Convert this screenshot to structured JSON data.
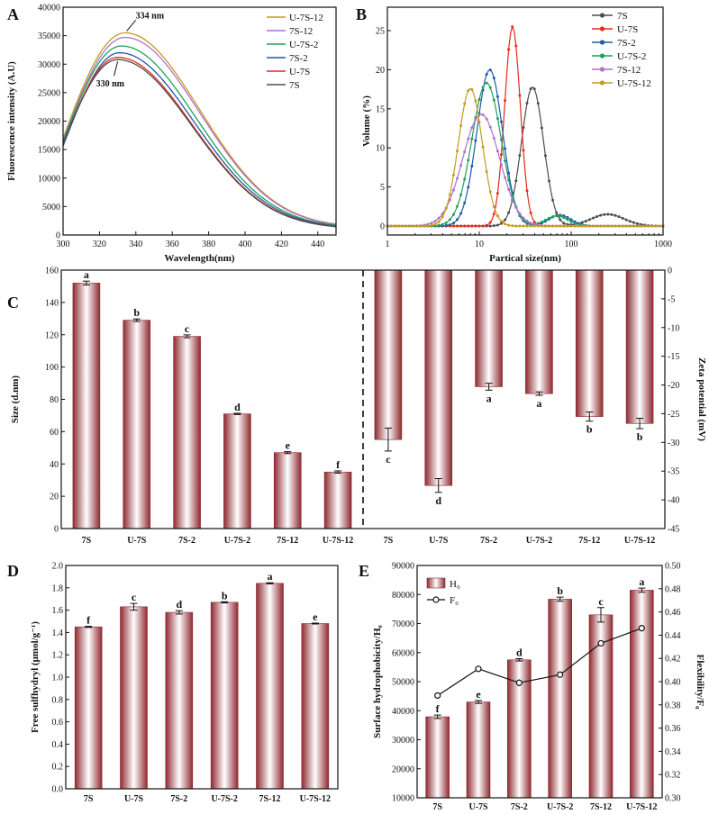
{
  "colors": {
    "7S": "#4d4d4d",
    "U-7S": "#e8291c",
    "7S-2": "#1d5aa8",
    "U-7S-2": "#1fa05a",
    "7S-12": "#b06fd0",
    "U-7S-12": "#c79a1c",
    "bar_dark": "#8e2a30",
    "bar_light": "#ffffff"
  },
  "chart_data": [
    {
      "id": "A",
      "type": "line",
      "panel_label": "A",
      "xlabel": "Wavelength(nm)",
      "ylabel": "Fluorescence intensity (A.U)",
      "xlim": [
        300,
        450
      ],
      "ylim": [
        0,
        40000
      ],
      "xticks": [
        300,
        320,
        340,
        360,
        380,
        400,
        420,
        440
      ],
      "yticks": [
        0,
        5000,
        10000,
        15000,
        20000,
        25000,
        30000,
        35000,
        40000
      ],
      "legend_order": [
        "U-7S-12",
        "7S-12",
        "U-7S-2",
        "7S-2",
        "U-7S",
        "7S"
      ],
      "series": [
        {
          "name": "U-7S-12",
          "peak_x": 334,
          "peak_y": 35500,
          "start_y": 17000,
          "end_y": 1300
        },
        {
          "name": "7S-12",
          "peak_x": 334,
          "peak_y": 34700,
          "start_y": 16600,
          "end_y": 1250
        },
        {
          "name": "U-7S-2",
          "peak_x": 332,
          "peak_y": 33200,
          "start_y": 16400,
          "end_y": 1200
        },
        {
          "name": "7S-2",
          "peak_x": 331,
          "peak_y": 32000,
          "start_y": 15600,
          "end_y": 1150
        },
        {
          "name": "U-7S",
          "peak_x": 330,
          "peak_y": 31200,
          "start_y": 16100,
          "end_y": 1100
        },
        {
          "name": "7S",
          "peak_x": 330,
          "peak_y": 30800,
          "start_y": 16200,
          "end_y": 1050
        }
      ],
      "annotations": [
        {
          "text": "334 nm",
          "x": 334,
          "y": 35500
        },
        {
          "text": "330 nm",
          "x": 330,
          "y": 30800
        }
      ]
    },
    {
      "id": "B",
      "type": "line",
      "panel_label": "B",
      "xlabel": "Partical size(nm)",
      "ylabel": "Volume (%)",
      "xscale": "log",
      "xlim": [
        1,
        1000
      ],
      "ylim": [
        0,
        28
      ],
      "xticks": [
        1,
        10,
        100,
        1000
      ],
      "yticks": [
        0,
        5,
        10,
        15,
        20,
        25
      ],
      "legend_order": [
        "7S",
        "U-7S",
        "7S-2",
        "U-7S-2",
        "7S-12",
        "U-7S-12"
      ],
      "series": [
        {
          "name": "7S",
          "peaks": [
            {
              "center": 38,
              "height": 17.8,
              "width": 0.12
            },
            {
              "center": 250,
              "height": 1.5,
              "width": 0.18
            }
          ]
        },
        {
          "name": "U-7S",
          "peaks": [
            {
              "center": 23,
              "height": 25.5,
              "width": 0.085
            }
          ]
        },
        {
          "name": "7S-2",
          "peaks": [
            {
              "center": 13,
              "height": 20,
              "width": 0.14
            },
            {
              "center": 75,
              "height": 1.4,
              "width": 0.12
            }
          ]
        },
        {
          "name": "U-7S-2",
          "peaks": [
            {
              "center": 12,
              "height": 18.3,
              "width": 0.16
            },
            {
              "center": 70,
              "height": 1.3,
              "width": 0.12
            }
          ]
        },
        {
          "name": "7S-12",
          "peaks": [
            {
              "center": 10.5,
              "height": 14.3,
              "width": 0.2
            }
          ]
        },
        {
          "name": "U-7S-12",
          "peaks": [
            {
              "center": 8,
              "height": 17.6,
              "width": 0.13
            }
          ]
        }
      ]
    },
    {
      "id": "C-size",
      "type": "bar",
      "panel_label": "C",
      "ylabel": "Size (d.nm)",
      "ylim": [
        0,
        160
      ],
      "yticks": [
        0,
        20,
        40,
        60,
        80,
        100,
        120,
        140,
        160
      ],
      "categories": [
        "7S",
        "U-7S",
        "7S-2",
        "U-7S-2",
        "7S-12",
        "U-7S-12"
      ],
      "values": [
        152,
        129,
        119,
        71,
        47,
        35
      ],
      "errors": [
        1.2,
        0.8,
        0.9,
        0.4,
        0.6,
        0.7
      ],
      "letters": [
        "a",
        "b",
        "c",
        "d",
        "e",
        "f"
      ]
    },
    {
      "id": "C-zeta",
      "type": "bar",
      "ylabel": "Zeta potential (mV)",
      "ylim": [
        -45,
        0
      ],
      "yticks": [
        0,
        -5,
        -10,
        -15,
        -20,
        -25,
        -30,
        -35,
        -40,
        -45
      ],
      "categories": [
        "7S",
        "U-7S",
        "7S-2",
        "U-7S-2",
        "7S-12",
        "U-7S-12"
      ],
      "values": [
        -29.5,
        -37.5,
        -20.3,
        -21.5,
        -25.5,
        -26.7
      ],
      "errors": [
        2.0,
        1.2,
        0.6,
        0.3,
        0.8,
        0.9
      ],
      "letters": [
        "c",
        "d",
        "a",
        "a",
        "b",
        "b"
      ]
    },
    {
      "id": "D",
      "type": "bar",
      "panel_label": "D",
      "ylabel": "Free sulfhydryl (μmol/g⁻¹)",
      "ylim": [
        0,
        2.0
      ],
      "yticks": [
        0.0,
        0.2,
        0.4,
        0.6,
        0.8,
        1.0,
        1.2,
        1.4,
        1.6,
        1.8,
        2.0
      ],
      "categories": [
        "7S",
        "U-7S",
        "7S-2",
        "U-7S-2",
        "7S-12",
        "U-7S-12"
      ],
      "values": [
        1.45,
        1.63,
        1.58,
        1.67,
        1.84,
        1.48
      ],
      "errors": [
        0.005,
        0.03,
        0.015,
        0.005,
        0.005,
        0.004
      ],
      "letters": [
        "f",
        "c",
        "d",
        "b",
        "a",
        "e"
      ]
    },
    {
      "id": "E",
      "type": "bar",
      "panel_label": "E",
      "ylabel": "Surface hydrophobicity/H₀",
      "y2label": "Flexibility/F₀",
      "ylim": [
        10000,
        90000
      ],
      "yticks": [
        10000,
        20000,
        30000,
        40000,
        50000,
        60000,
        70000,
        80000,
        90000
      ],
      "y2lim": [
        0.3,
        0.5
      ],
      "y2ticks": [
        0.3,
        0.32,
        0.34,
        0.36,
        0.38,
        0.4,
        0.42,
        0.44,
        0.46,
        0.48,
        0.5
      ],
      "categories": [
        "7S",
        "U-7S",
        "7S-2",
        "U-7S-2",
        "7S-12",
        "U-7S-12"
      ],
      "series": [
        {
          "name": "H₀",
          "kind": "bar",
          "values": [
            37900,
            43000,
            57500,
            78400,
            73000,
            81500
          ],
          "errors": [
            600,
            500,
            400,
            700,
            2500,
            700
          ],
          "letters": [
            "f",
            "e",
            "d",
            "b",
            "c",
            "a"
          ]
        },
        {
          "name": "F₀",
          "kind": "line",
          "values": [
            0.388,
            0.411,
            0.399,
            0.406,
            0.433,
            0.446
          ],
          "errors": [
            0.001,
            0.001,
            0.003,
            0.001,
            0.001,
            0.001
          ]
        }
      ]
    }
  ]
}
